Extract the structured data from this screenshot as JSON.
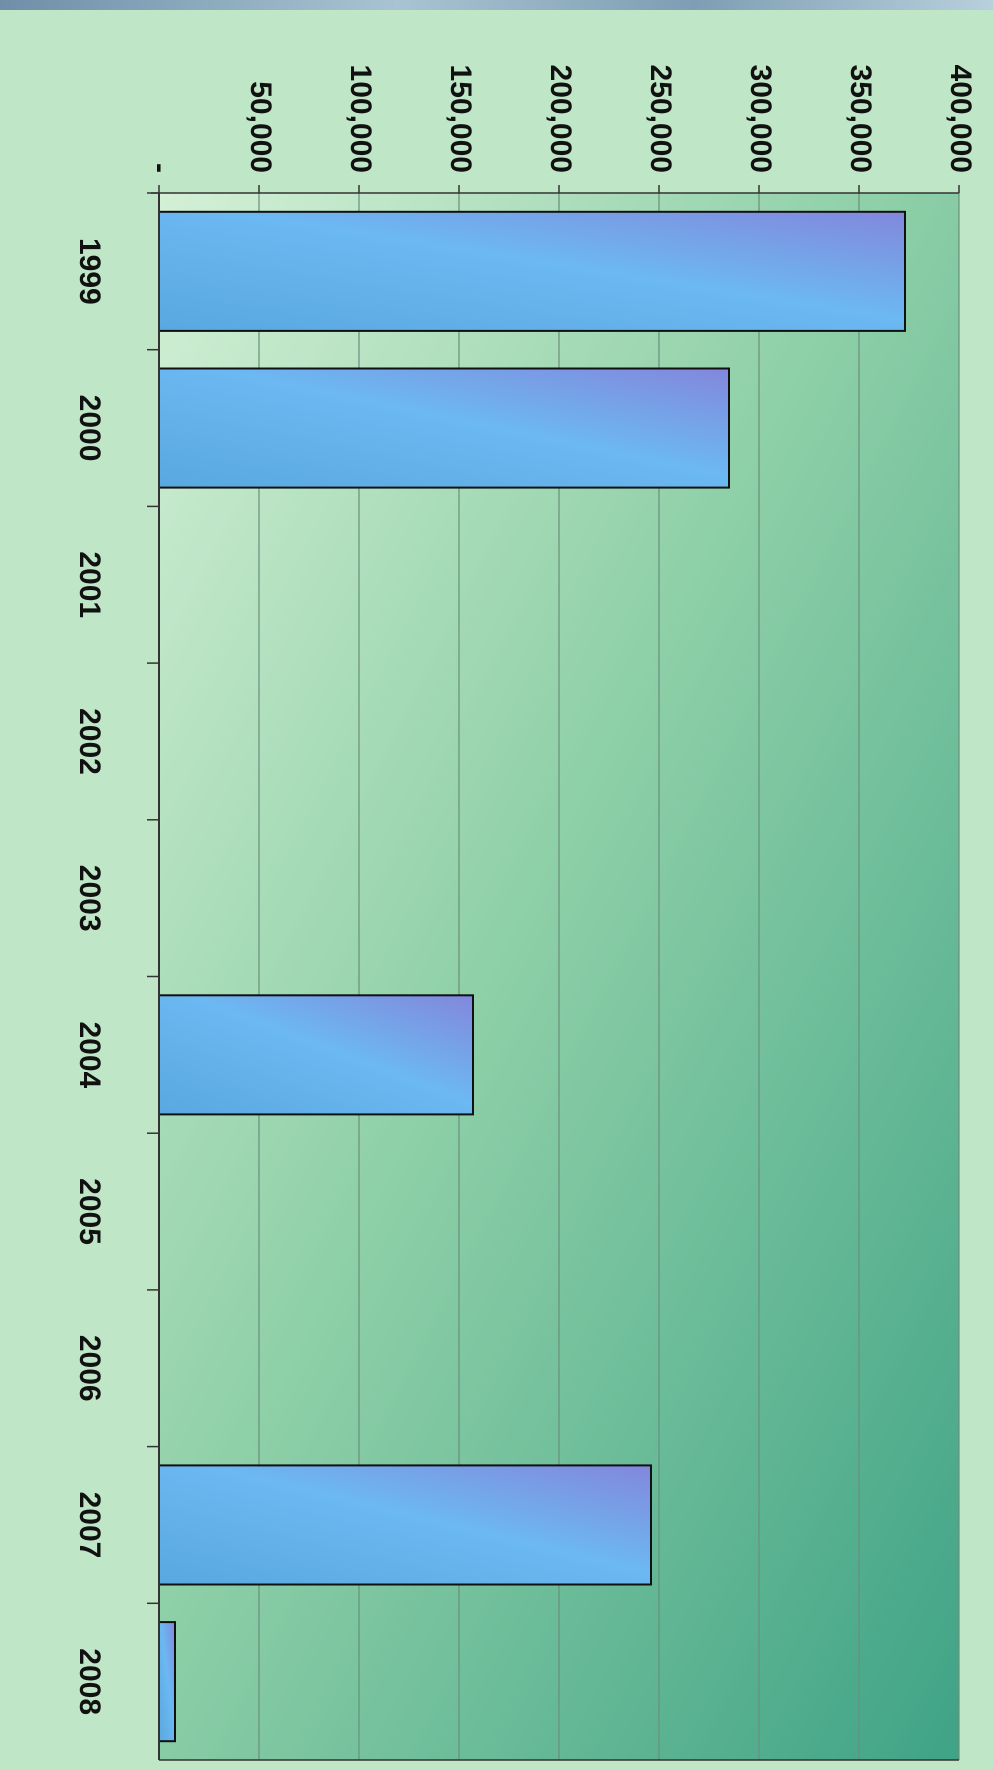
{
  "chart_data": {
    "type": "bar",
    "orientation": "vertical, image rotated 90° clockwise",
    "title": "",
    "xlabel": "",
    "ylabel": "",
    "categories": [
      "1999",
      "2000",
      "2001",
      "2002",
      "2003",
      "2004",
      "2005",
      "2006",
      "2007",
      "2008"
    ],
    "values": [
      373000,
      285000,
      0,
      0,
      0,
      157000,
      0,
      0,
      246000,
      8000
    ],
    "ylim": [
      0,
      400000
    ],
    "y_ticks": [
      0,
      50000,
      100000,
      150000,
      200000,
      250000,
      300000,
      350000,
      400000
    ],
    "y_tick_labels": [
      "-",
      "50,000",
      "100,000",
      "150,000",
      "200,000",
      "250,000",
      "300,000",
      "350,000",
      "400,000"
    ],
    "grid": true,
    "legend": "none",
    "colors": {
      "bar_light": "#6fb8f0",
      "bar_dark": "#7a8fe0",
      "plot_bg_light": "#c9ecd0",
      "plot_bg_dark": "#4fae8c",
      "axis": "#333333",
      "grid": "#6a8f7a"
    }
  }
}
